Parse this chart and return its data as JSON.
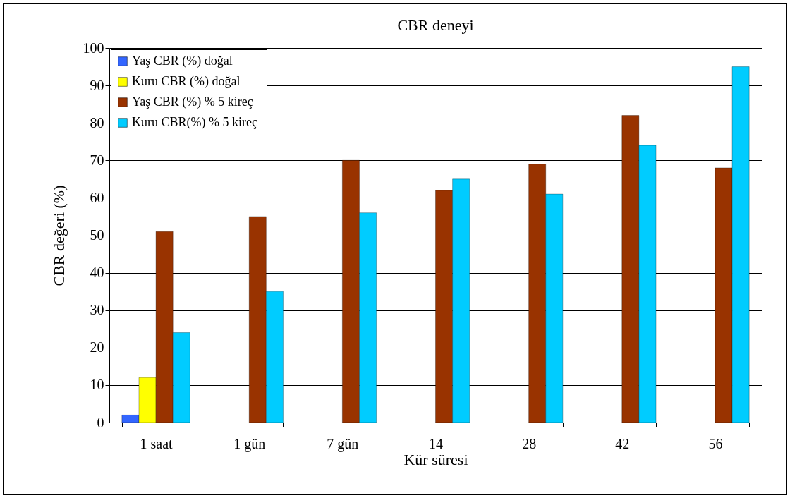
{
  "chart_data": {
    "type": "bar",
    "title": "CBR deneyi",
    "xlabel": "Kür süresi",
    "ylabel": "CBR değeri (%)",
    "categories": [
      "1 saat",
      "1 gün",
      "7 gün",
      "14",
      "28",
      "42",
      "56"
    ],
    "series": [
      {
        "name": "Yaş CBR (%) doğal",
        "color": "#3366ff",
        "values": [
          2,
          null,
          null,
          null,
          null,
          null,
          null
        ]
      },
      {
        "name": "Kuru CBR (%) doğal",
        "color": "#ffff00",
        "values": [
          12,
          null,
          null,
          null,
          null,
          null,
          null
        ]
      },
      {
        "name": "Yaş CBR (%) % 5 kireç",
        "color": "#993300",
        "values": [
          51,
          55,
          70,
          62,
          69,
          82,
          68
        ]
      },
      {
        "name": "Kuru CBR(%) % 5  kireç",
        "color": "#00ccff",
        "values": [
          24,
          35,
          56,
          65,
          61,
          74,
          95
        ]
      }
    ],
    "ylim": [
      0,
      100
    ],
    "yticks": [
      0,
      10,
      20,
      30,
      40,
      50,
      60,
      70,
      80,
      90,
      100
    ],
    "grid": "y",
    "legend": "top left"
  }
}
